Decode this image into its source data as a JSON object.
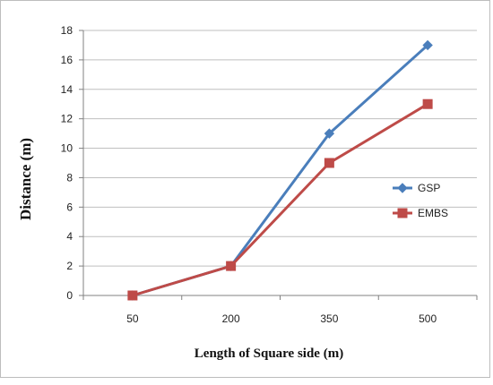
{
  "chart_data": {
    "type": "line",
    "title": "",
    "xlabel": "Length of Square side (m)",
    "ylabel": "Distance (m)",
    "categories": [
      "50",
      "200",
      "350",
      "500"
    ],
    "ylim": [
      0,
      18
    ],
    "ytick_step": 2,
    "grid": true,
    "legend_position": "right",
    "series": [
      {
        "name": "GSP",
        "values": [
          0,
          2,
          11,
          17
        ],
        "color": "#4a7ebb",
        "marker": "diamond"
      },
      {
        "name": "EMBS",
        "values": [
          0,
          2,
          9,
          13
        ],
        "color": "#be4b48",
        "marker": "square"
      }
    ]
  }
}
